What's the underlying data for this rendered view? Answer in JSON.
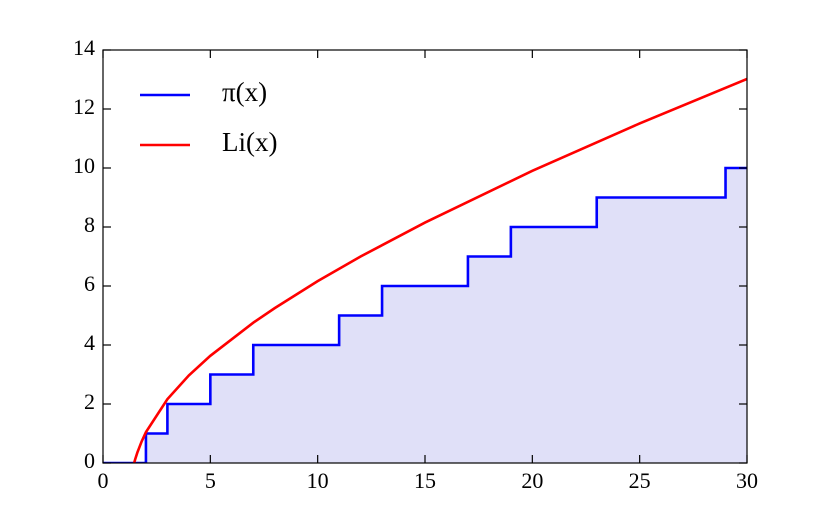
{
  "chart_data": {
    "type": "line",
    "series": [
      {
        "name": "π(x)",
        "color": "#0000ff",
        "step": "post",
        "fill_color": "#e0e0f8",
        "x": [
          0,
          2,
          3,
          5,
          7,
          11,
          13,
          17,
          19,
          23,
          29,
          30
        ],
        "values": [
          0,
          1,
          2,
          3,
          4,
          5,
          6,
          7,
          8,
          9,
          10,
          10
        ]
      },
      {
        "name": "Li(x)",
        "color": "#ff0000",
        "x": [
          1.451,
          1.5,
          1.6,
          1.8,
          2,
          3,
          4,
          5,
          7,
          8,
          10,
          12,
          15,
          20,
          25,
          30
        ],
        "values": [
          0,
          0.126,
          0.353,
          0.73,
          1.045,
          2.163,
          2.97,
          3.634,
          4.757,
          5.25,
          6.166,
          7.0,
          8.15,
          9.905,
          11.51,
          13.02
        ]
      }
    ],
    "xlim": [
      0,
      30
    ],
    "xticks": [
      0,
      5,
      10,
      15,
      20,
      25,
      30
    ],
    "ylim": [
      0,
      14
    ],
    "yticks": [
      0,
      2,
      4,
      6,
      8,
      10,
      12,
      14
    ],
    "grid": false,
    "legend": "upper left"
  }
}
